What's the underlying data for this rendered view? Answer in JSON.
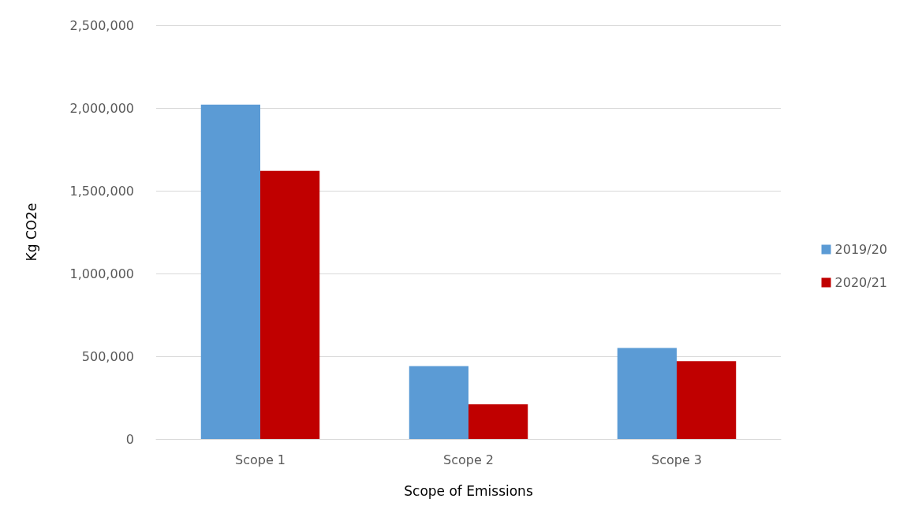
{
  "chart_data": {
    "type": "bar",
    "xlabel": "Scope of Emissions",
    "ylabel": "Kg CO2e",
    "categories": [
      "Scope 1",
      "Scope 2",
      "Scope 3"
    ],
    "series": [
      {
        "name": "2019/20",
        "color": "#5b9bd5",
        "values": [
          2020000,
          440000,
          550000
        ]
      },
      {
        "name": "2020/21",
        "color": "#c00000",
        "values": [
          1620000,
          210000,
          470000
        ]
      }
    ],
    "ylim": [
      0,
      2500000
    ],
    "yticks": [
      0,
      {
        "value": 500000,
        "label": "500,000"
      },
      {
        "value": 1000000,
        "label": "1,000,000"
      },
      {
        "value": 1500000,
        "label": "1,500,000"
      },
      {
        "value": 2000000,
        "label": "2,000,000"
      },
      {
        "value": 2500000,
        "label": "2,500,000"
      }
    ],
    "grid": "y",
    "legend": "right"
  }
}
